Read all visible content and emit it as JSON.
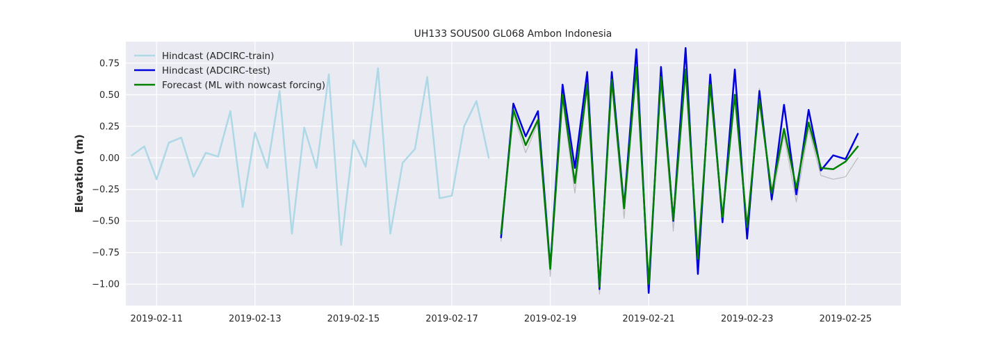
{
  "chart_data": {
    "type": "line",
    "title": "UH133 SOUS00 GL068 Ambon Indonesia",
    "xlabel": "",
    "ylabel": "Elevation (m)",
    "ylim": [
      -1.17,
      0.92
    ],
    "xlim": [
      "2019-02-10T09:00",
      "2019-02-26T03:00"
    ],
    "grid": true,
    "legend_position": "top-left",
    "x_ticks": [
      "2019-02-11",
      "2019-02-13",
      "2019-02-15",
      "2019-02-17",
      "2019-02-19",
      "2019-02-21",
      "2019-02-23",
      "2019-02-25"
    ],
    "y_ticks": [
      0.75,
      0.5,
      0.25,
      0.0,
      -0.25,
      -0.5,
      -0.75,
      -1.0
    ],
    "y_tick_labels": [
      "0.75",
      "0.50",
      "0.25",
      "0.00",
      "−0.25",
      "−0.50",
      "−0.75",
      "−1.00"
    ],
    "x_step_hours": 6,
    "series": [
      {
        "name": "Hindcast (ADCIRC-train)",
        "color": "#add8e6",
        "start": "2019-02-10T12:00",
        "values": [
          0.02,
          0.09,
          -0.17,
          0.12,
          0.16,
          -0.15,
          0.04,
          0.01,
          0.37,
          -0.39,
          0.2,
          -0.08,
          0.53,
          -0.6,
          0.24,
          -0.08,
          0.66,
          -0.69,
          0.14,
          -0.07,
          0.71,
          -0.6,
          -0.04,
          0.07,
          0.64,
          -0.32,
          -0.3,
          0.25,
          0.45,
          0.0
        ]
      },
      {
        "name": "Hindcast (ADCIRC-test)",
        "color": "#0000dd",
        "start": "2019-02-18T00:00",
        "values": [
          -0.63,
          0.43,
          0.17,
          0.37,
          -0.87,
          0.58,
          -0.08,
          0.68,
          -1.04,
          0.68,
          -0.39,
          0.86,
          -1.07,
          0.72,
          -0.5,
          0.87,
          -0.92,
          0.66,
          -0.51,
          0.7,
          -0.64,
          0.53,
          -0.33,
          0.42,
          -0.29,
          0.38,
          -0.1,
          0.02,
          -0.01,
          0.19
        ]
      },
      {
        "name": "Forecast (ML with nowcast forcing)",
        "color": "#008000",
        "start": "2019-02-18T00:00",
        "values": [
          -0.6,
          0.38,
          0.1,
          0.3,
          -0.88,
          0.5,
          -0.2,
          0.58,
          -1.02,
          0.62,
          -0.4,
          0.72,
          -1.0,
          0.64,
          -0.49,
          0.7,
          -0.8,
          0.58,
          -0.47,
          0.5,
          -0.55,
          0.46,
          -0.28,
          0.23,
          -0.24,
          0.28,
          -0.08,
          -0.09,
          -0.03,
          0.09
        ]
      },
      {
        "color": "#a9a9a9",
        "start": "2019-02-18T00:00",
        "values": [
          -0.66,
          0.35,
          0.04,
          0.28,
          -0.94,
          0.46,
          -0.28,
          0.55,
          -1.08,
          0.58,
          -0.48,
          0.68,
          -1.0,
          0.6,
          -0.58,
          0.66,
          -0.84,
          0.55,
          -0.52,
          0.48,
          -0.55,
          0.55,
          -0.35,
          0.18,
          -0.35,
          0.23,
          -0.14,
          -0.17,
          -0.15,
          0.0
        ]
      }
    ]
  }
}
